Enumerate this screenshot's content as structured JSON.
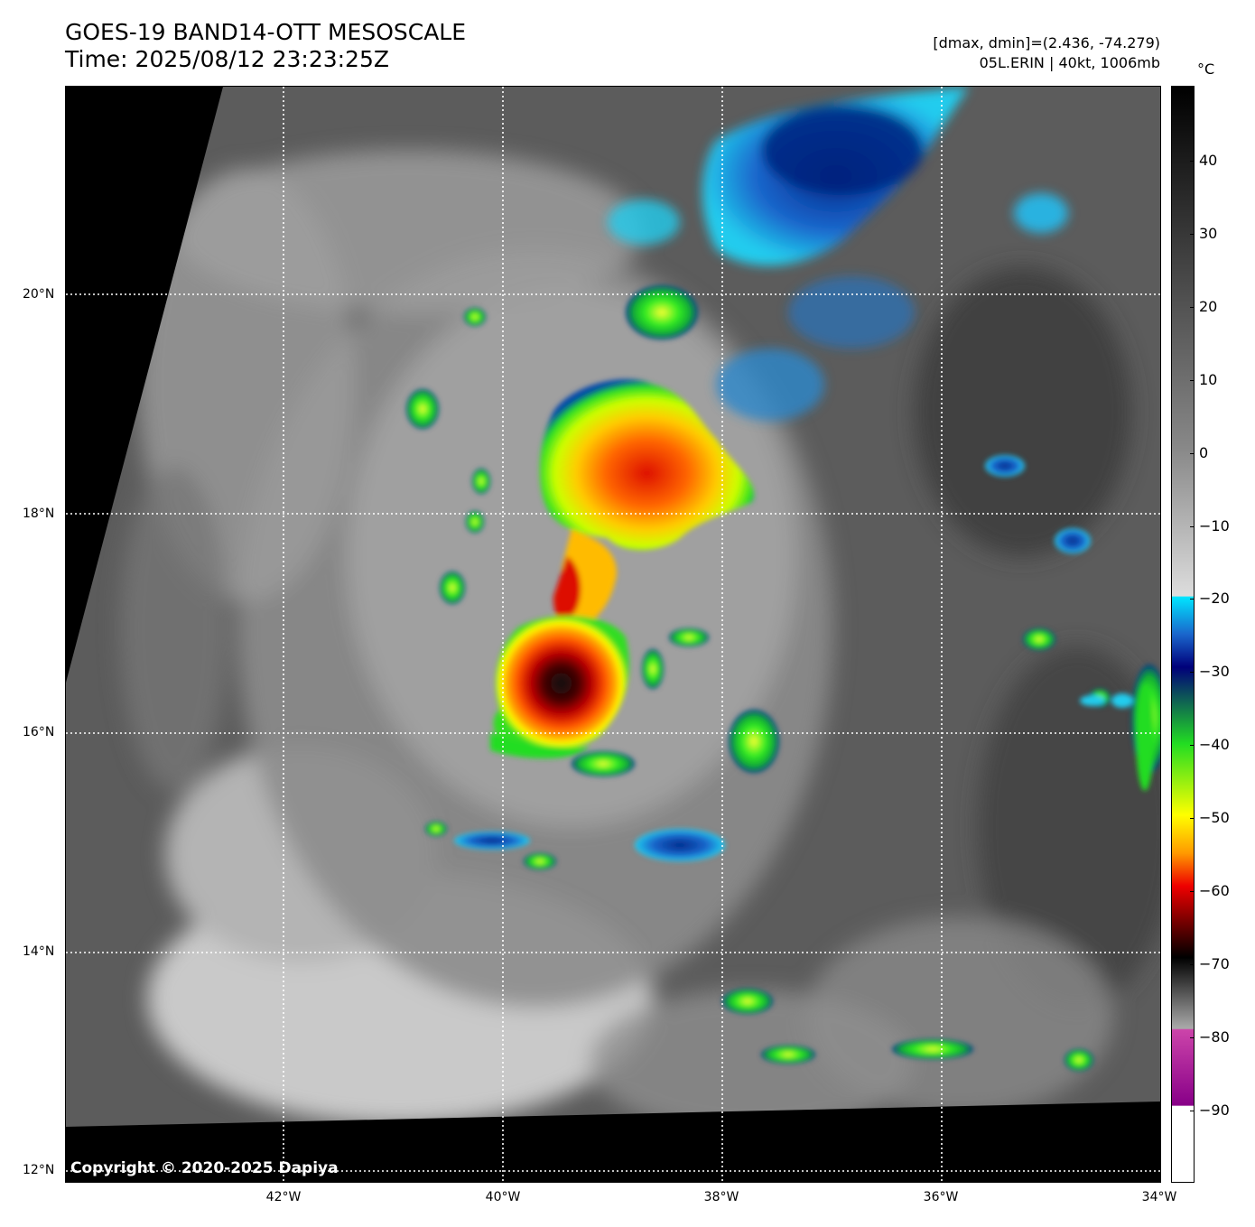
{
  "header": {
    "title_line1": "GOES-19 BAND14-OTT MESOSCALE",
    "title_line2": "Time: 2025/08/12 23:23:25Z",
    "info_line1": "[dmax, dmin]=(2.436, -74.279)",
    "info_line2": "05L.ERIN | 40kt, 1006mb"
  },
  "map": {
    "lat_labels": [
      "20°N",
      "18°N",
      "16°N",
      "14°N",
      "12°N"
    ],
    "lon_labels": [
      "42°W",
      "40°W",
      "38°W",
      "36°W",
      "34°W"
    ],
    "copyright": "Copyright © 2020-2025 Dapiya"
  },
  "colorbar": {
    "unit": "°C",
    "ticks": [
      "40",
      "30",
      "20",
      "10",
      "0",
      "−10",
      "−20",
      "−30",
      "−40",
      "−50",
      "−60",
      "−70",
      "−80",
      "−90"
    ],
    "colors": {
      "warm_top": "#000000",
      "zero": "#888888",
      "minus20_gray": "#dddddd",
      "cyan": "#00e5ff",
      "blue": "#1a66cc",
      "navy": "#00007a",
      "green": "#22dd22",
      "yellow": "#ffff00",
      "orange": "#ff9900",
      "red": "#ee0000",
      "darkred": "#5a0000",
      "magenta": "#cc44aa",
      "purple": "#880088",
      "coldest": "#ffffff"
    }
  }
}
